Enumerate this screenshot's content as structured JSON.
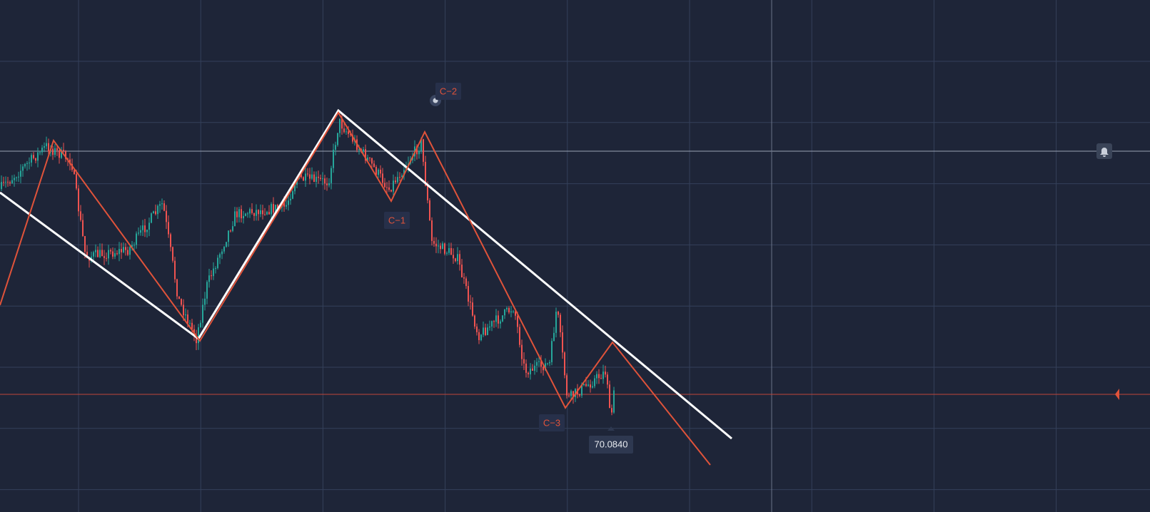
{
  "wave_labels": [
    "C−1",
    "C−2",
    "C−3"
  ],
  "price_tag": "70.0840"
}
